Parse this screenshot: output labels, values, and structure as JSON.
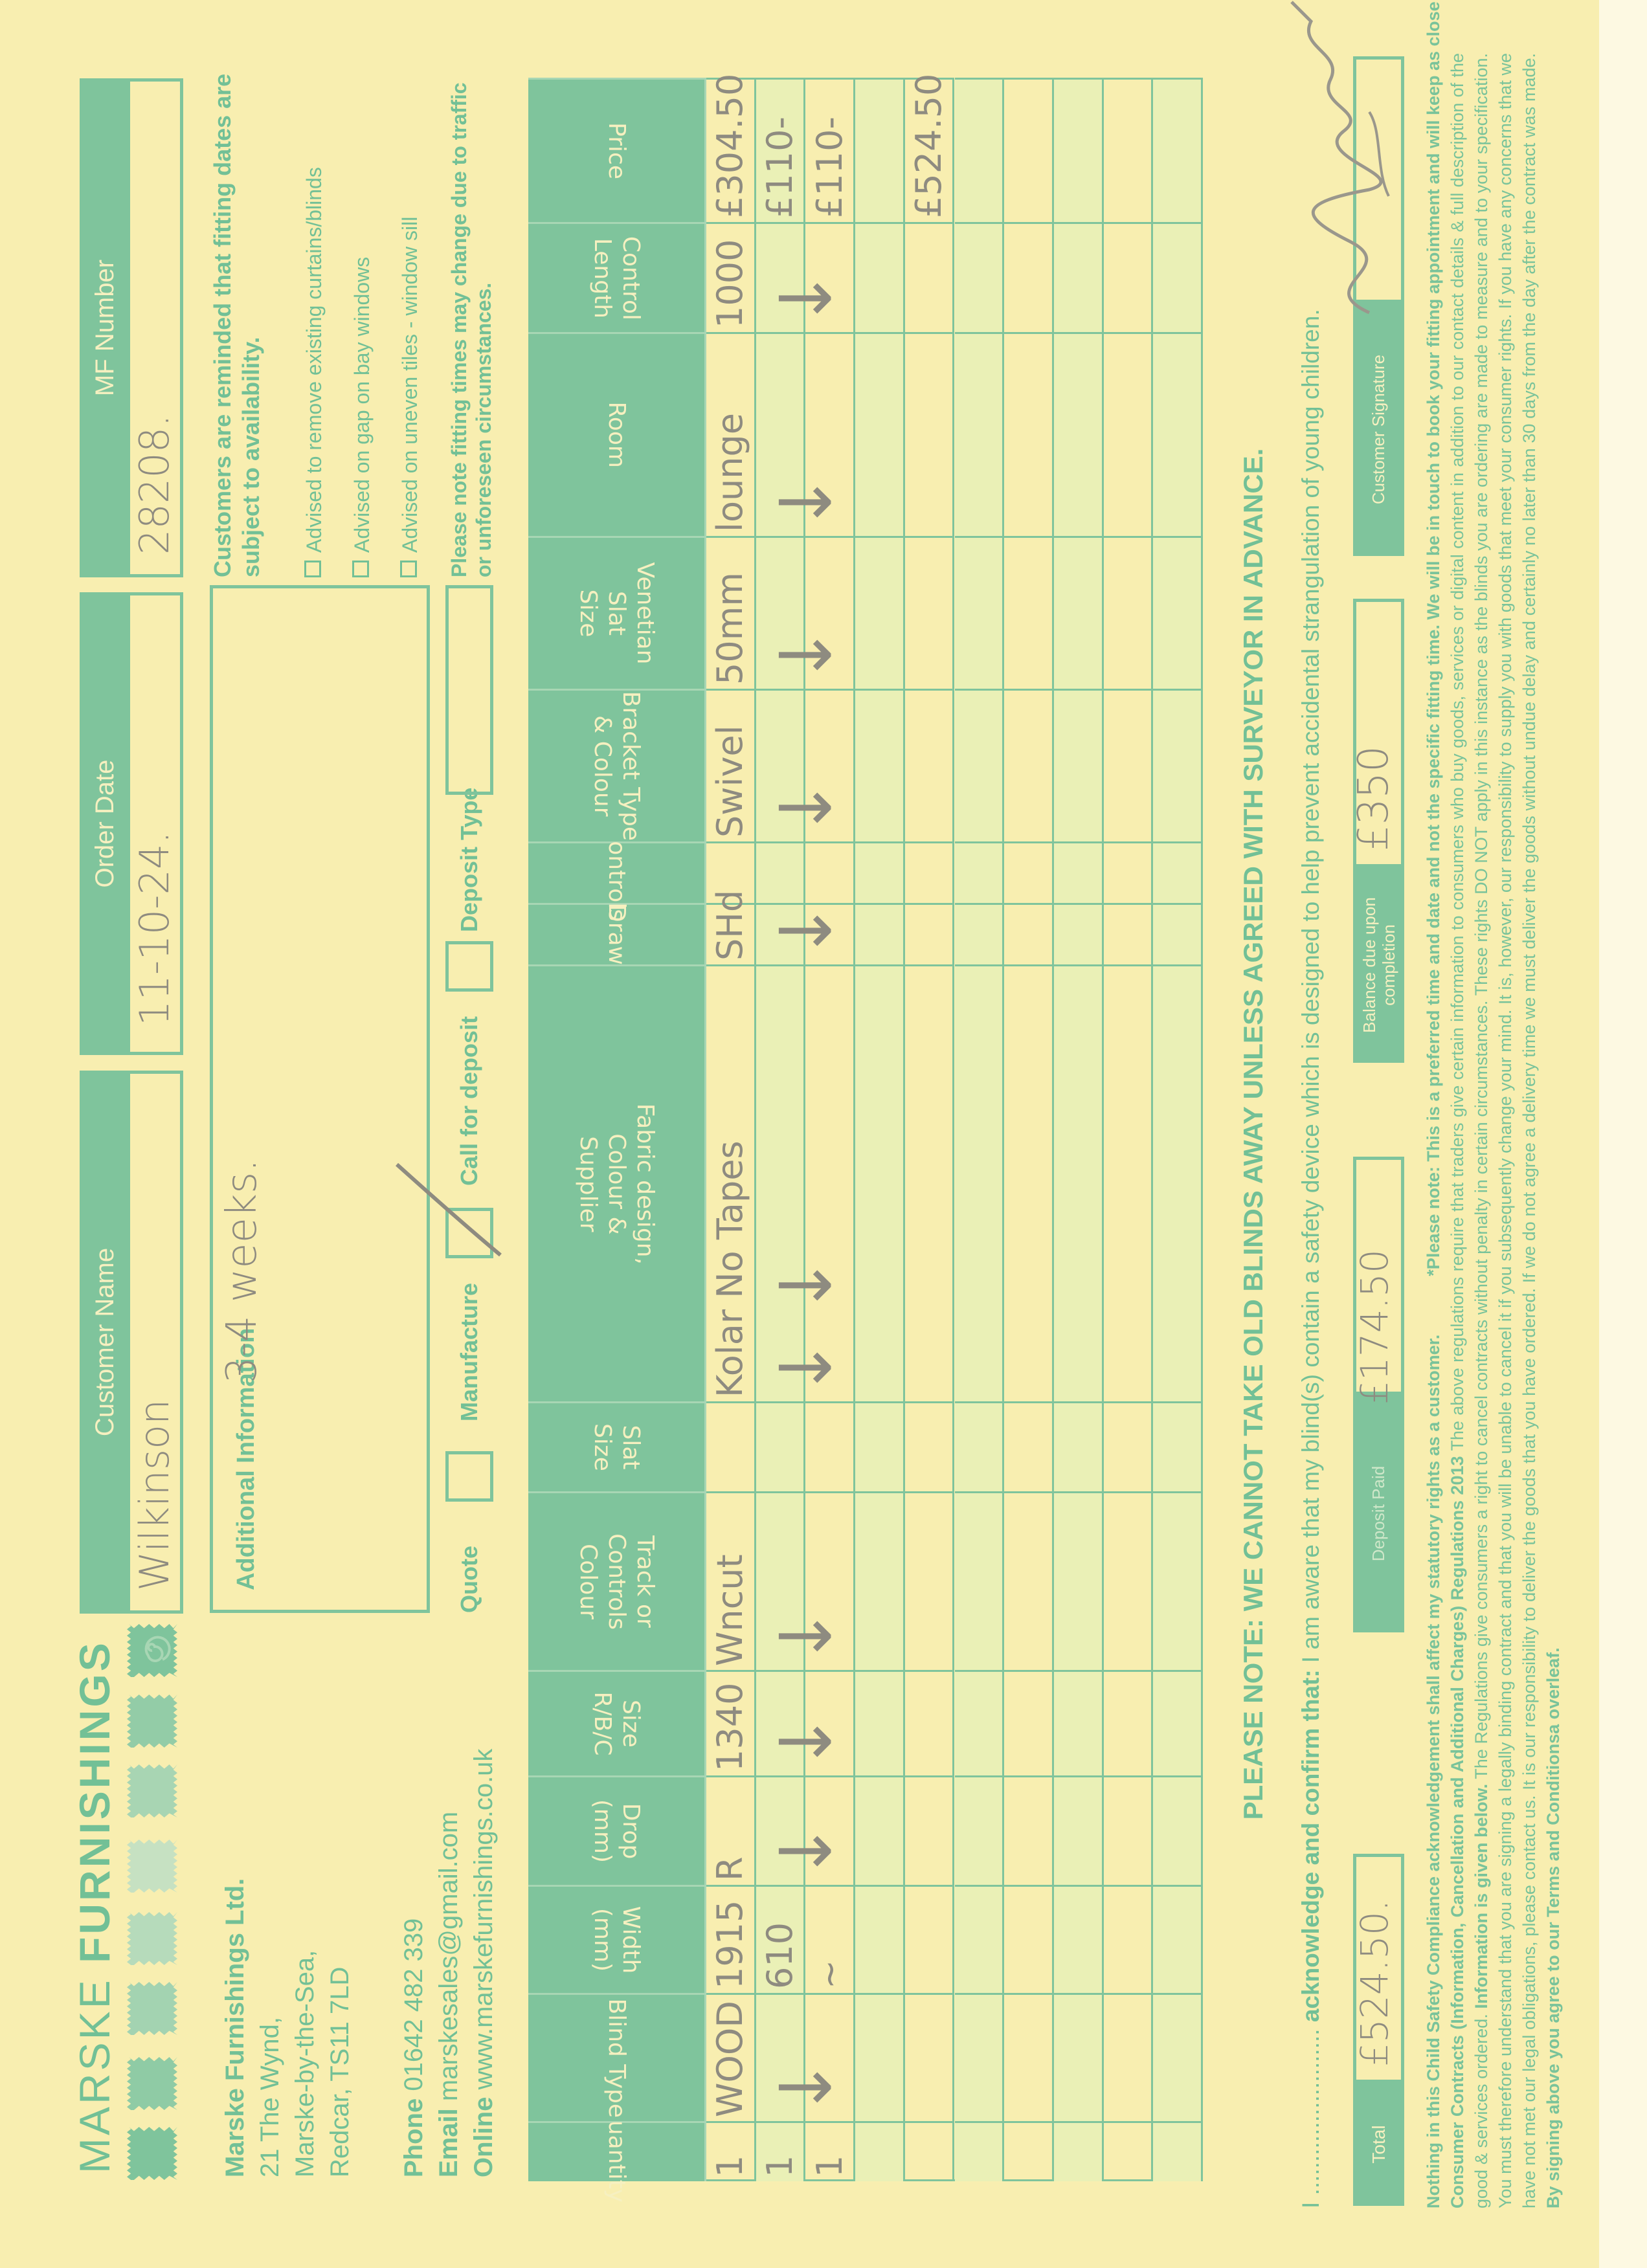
{
  "brand": {
    "logo_text_light": "MARSKE",
    "logo_text_bold": "FURNISHINGS",
    "swatch_colors": [
      "#7fc49c",
      "#8fcba5",
      "#a3d3b1",
      "#b6dbbb",
      "#c6e1c2",
      "#a8d5b3",
      "#93cca7",
      "#7fc49c"
    ]
  },
  "company": {
    "name": "Marske Furnishings Ltd.",
    "address": [
      "21 The Wynd,",
      "Marske-by-the-Sea,",
      "Redcar, TS11 7LD"
    ],
    "phone_label": "Phone",
    "phone": "01642 482 339",
    "email_label": "Email",
    "email": "marskesales@gmail.com",
    "online_label": "Online",
    "online": "www.marskefurnishings.co.uk"
  },
  "header_fields": {
    "customer_name_label": "Customer Name",
    "customer_name": "Wilkinson",
    "order_date_label": "Order Date",
    "order_date": "11-10-24.",
    "mf_number_label": "MF Number",
    "mf_number": "28208."
  },
  "additional_info": {
    "label": "Additional Information",
    "value": "3-4 weeks."
  },
  "order_type": {
    "quote": "Quote",
    "quote_checked": false,
    "manufacture": "Manufacture",
    "manufacture_checked": true,
    "call_for_deposit": "Call for deposit",
    "call_for_deposit_checked": false,
    "deposit_type": "Deposit Type",
    "deposit_type_value": ""
  },
  "notices": {
    "fitting_reminder": "Customers are reminded that fitting dates are subject to availability.",
    "advisories": [
      "Advised to remove existing curtains/blinds",
      "Advised on gap on bay windows",
      "Advised on uneven tiles - window sill"
    ],
    "fitting_times": "Please note fitting times may change due to traffic or unforeseen circumstances."
  },
  "table": {
    "columns": [
      "Quantity",
      "Blind Type",
      "Width (mm)",
      "Drop (mm)",
      "Size R/B/C",
      "Track or\nControls\nColour",
      "Slat Size",
      "Fabric design,\nColour &\nSupplier",
      "Draw",
      "Controls",
      "Bracket Type\n& Colour",
      "Venetian Slat\nSize",
      "Room",
      "Control\nLength",
      "Price"
    ],
    "rows": [
      [
        "1",
        "WOOD",
        "1915",
        "R",
        "1340",
        "Wncut",
        "",
        "Kolar No Tapes",
        "SHd",
        "",
        "Swivel",
        "50mm",
        "lounge",
        "1000",
        "£304.50"
      ],
      [
        "1",
        "↓",
        "610",
        "↓",
        "↓",
        "↓",
        "",
        "↓     ↓",
        "↓",
        "",
        "↓",
        "↓",
        "↓",
        "↓",
        "£110-"
      ],
      [
        "1",
        "",
        "~",
        "",
        "",
        "",
        "",
        "",
        "",
        "",
        "",
        "",
        "",
        "",
        "£110-"
      ],
      [
        "",
        "",
        "",
        "",
        "",
        "",
        "",
        "",
        "",
        "",
        "",
        "",
        "",
        "",
        ""
      ],
      [
        "",
        "",
        "",
        "",
        "",
        "",
        "",
        "",
        "",
        "",
        "",
        "",
        "",
        "",
        "£524.50"
      ],
      [
        "",
        "",
        "",
        "",
        "",
        "",
        "",
        "",
        "",
        "",
        "",
        "",
        "",
        "",
        ""
      ],
      [
        "",
        "",
        "",
        "",
        "",
        "",
        "",
        "",
        "",
        "",
        "",
        "",
        "",
        "",
        ""
      ],
      [
        "",
        "",
        "",
        "",
        "",
        "",
        "",
        "",
        "",
        "",
        "",
        "",
        "",
        "",
        ""
      ],
      [
        "",
        "",
        "",
        "",
        "",
        "",
        "",
        "",
        "",
        "",
        "",
        "",
        "",
        "",
        ""
      ],
      [
        "",
        "",
        "",
        "",
        "",
        "",
        "",
        "",
        "",
        "",
        "",
        "",
        "",
        "",
        ""
      ]
    ]
  },
  "please_note": "PLEASE NOTE: WE CANNOT TAKE OLD BLINDS AWAY UNLESS AGREED WITH SURVEYOR IN ADVANCE.",
  "acknowledge": {
    "prefix": "I .........................",
    "bold": " acknowledge and confirm that:",
    "text": " I am aware that my blind(s) contain a safety device which is designed to help prevent accidental strangulation of young children."
  },
  "totals": {
    "total_label": "Total",
    "total": "£524.50.",
    "deposit_label": "Deposit Paid",
    "deposit": "£174.50",
    "balance_label": "Balance due upon completion",
    "balance": "£350",
    "signature_label": "Customer Signature",
    "signature": "Wilkinson"
  },
  "footer": {
    "line1_bold": "Nothing in this Child Safety Compliance acknowledgement shall affect my statutory rights as a customer.",
    "line1_note": "*Please note: This is a preferred time and date and not the specific fitting time. We will be in touch to book your fitting appointment and will keep as close to your desired time as possible.",
    "regs_bold": "Consumer Contracts (Information, Cancellation and Additional Charges) Regulations 2013",
    "regs_text": " The above regulations require that traders give certain information to consumers who buy goods, services or digital content in addition to our contact details & full description of the good & services ordered.",
    "info_bold": "Information is given below.",
    "info_text": " The Regulations give consumers a right to cancel contracts without penalty in certain circumstances. These rights DO NOT apply in this instance as the blinds you are ordering are made to measure and to your specification. You must therefore understand that you are signing a legally binding contract and that you will be unable to cancel it if you subsequently change your mind. It is, however, our responsibility to supply you with goods that meet your consumer rights. If you have any concerns that we have not met our legal obligations, please contact us. It is our responsibility to deliver the goods that you have ordered. If we do not agree a delivery time we must deliver the goods without undue delay and certainly no later than 30 days from the day after the contract was made.",
    "terms_bold": "By signing above you agree to our Terms and Conditionsa overleaf."
  }
}
